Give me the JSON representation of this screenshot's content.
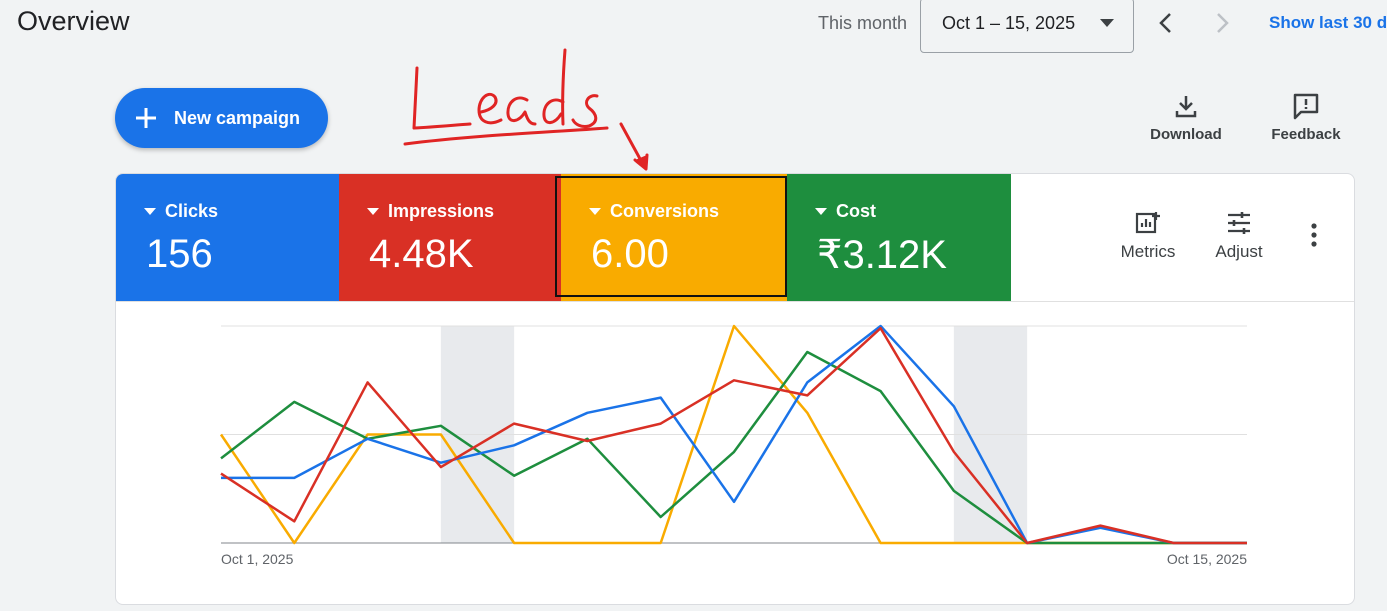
{
  "header": {
    "title": "Overview",
    "range_label": "This month",
    "date_range": "Oct 1 – 15, 2025",
    "show_last": "Show last 30 d"
  },
  "actions": {
    "new_campaign": "New campaign",
    "download": "Download",
    "feedback": "Feedback"
  },
  "annotation": {
    "handwritten": "Leads",
    "color": "#e02424"
  },
  "metrics": [
    {
      "name": "Clicks",
      "value": "156",
      "color": "#1a73e8"
    },
    {
      "name": "Impressions",
      "value": "4.48K",
      "color": "#d93025"
    },
    {
      "name": "Conversions",
      "value": "6.00",
      "color": "#f9ab00"
    },
    {
      "name": "Cost",
      "value": "₹3.12K",
      "color": "#1e8e3e"
    }
  ],
  "tools": {
    "metrics": "Metrics",
    "adjust": "Adjust"
  },
  "chart_data": {
    "type": "line",
    "x": [
      "Oct 1",
      "Oct 2",
      "Oct 3",
      "Oct 4",
      "Oct 5",
      "Oct 6",
      "Oct 7",
      "Oct 8",
      "Oct 9",
      "Oct 10",
      "Oct 11",
      "Oct 12",
      "Oct 13",
      "Oct 14",
      "Oct 15"
    ],
    "tick_labels": [
      "Oct 1, 2025",
      "Oct 15, 2025"
    ],
    "ylim": [
      0,
      1
    ],
    "grid": true,
    "weekend_shading": [
      [
        "Oct 4",
        "Oct 5"
      ],
      [
        "Oct 11",
        "Oct 12"
      ]
    ],
    "series": [
      {
        "color": "#1a73e8",
        "values": [
          0.3,
          0.3,
          0.48,
          0.37,
          0.45,
          0.6,
          0.67,
          0.19,
          0.74,
          1.0,
          0.63,
          0.0,
          0.07,
          0.0,
          0.0
        ]
      },
      {
        "color": "#d93025",
        "values": [
          0.32,
          0.1,
          0.74,
          0.35,
          0.55,
          0.47,
          0.55,
          0.75,
          0.68,
          0.99,
          0.42,
          0.0,
          0.08,
          0.0,
          0.0
        ]
      },
      {
        "color": "#f9ab00",
        "values": [
          0.5,
          0.0,
          0.5,
          0.5,
          0.0,
          0.0,
          0.0,
          1.0,
          0.6,
          0.0,
          0.0,
          0.0,
          0.0,
          0.0,
          0.0
        ]
      },
      {
        "color": "#1e8e3e",
        "values": [
          0.39,
          0.65,
          0.48,
          0.54,
          0.31,
          0.48,
          0.12,
          0.42,
          0.88,
          0.7,
          0.24,
          0.0,
          0.0,
          0.0,
          0.0
        ]
      }
    ]
  }
}
